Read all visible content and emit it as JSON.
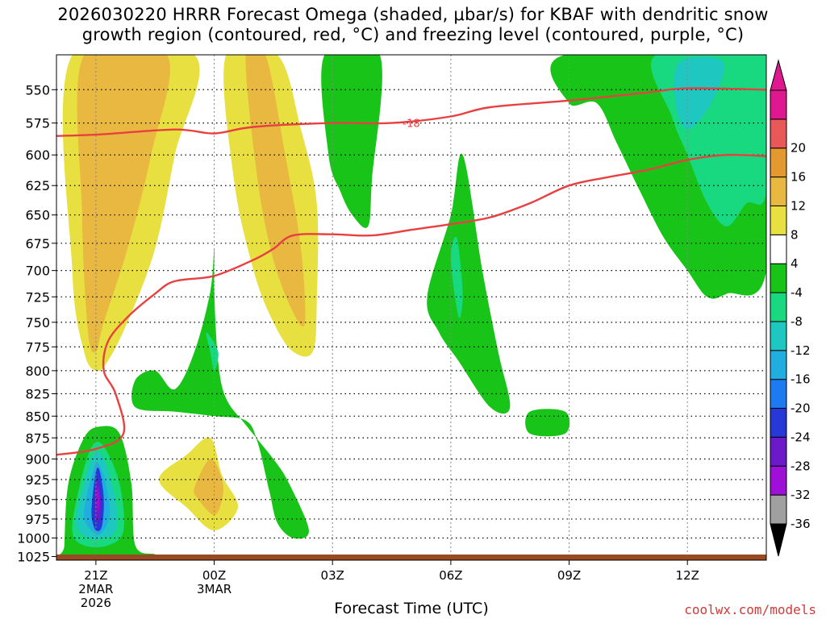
{
  "title": {
    "line1": "2026030220 HRRR Forecast Omega (shaded, μbar/s) for KBAF with dendritic snow",
    "line2": "growth region (contoured, red, °C) and freezing level (contoured, purple, °C)"
  },
  "x_axis": {
    "label": "Forecast Time (UTC)",
    "ticks": [
      {
        "label": "21Z",
        "sub1": "2MAR",
        "sub2": "2026",
        "hour": 0
      },
      {
        "label": "00Z",
        "sub1": "3MAR",
        "sub2": "",
        "hour": 3
      },
      {
        "label": "03Z",
        "sub1": "",
        "sub2": "",
        "hour": 6
      },
      {
        "label": "06Z",
        "sub1": "",
        "sub2": "",
        "hour": 9
      },
      {
        "label": "09Z",
        "sub1": "",
        "sub2": "",
        "hour": 12
      },
      {
        "label": "12Z",
        "sub1": "",
        "sub2": "",
        "hour": 15
      }
    ]
  },
  "credit": "coolwx.com/models",
  "chart_data": {
    "type": "contour",
    "x_units": "forecast hour from 2026-03-02 21Z",
    "xlim": [
      -1,
      17
    ],
    "ylim": [
      1030,
      525
    ],
    "y_log_scale": true,
    "y_ticks": [
      550,
      575,
      600,
      625,
      650,
      675,
      700,
      725,
      750,
      775,
      800,
      825,
      850,
      875,
      900,
      925,
      950,
      975,
      1000,
      1025
    ],
    "grid": true,
    "colorbar": {
      "levels": [
        -36,
        -32,
        -28,
        -24,
        -20,
        -16,
        -12,
        -8,
        -4,
        4,
        8,
        12,
        16,
        20
      ],
      "colors": [
        "#a0a0a0",
        "#9e10d8",
        "#6a1ac8",
        "#2638d6",
        "#1e7af0",
        "#20aee0",
        "#1ec8c0",
        "#18d880",
        "#18c418",
        "#ffffff",
        "#e8e040",
        "#e8b840",
        "#e49830",
        "#e85858",
        "#e01890"
      ],
      "over_color": "#e01890",
      "under_color": "#000000"
    },
    "omega_regions": [
      {
        "level": 4,
        "color": "#e8e040",
        "points": [
          [
            -0.6,
            525
          ],
          [
            2.5,
            525
          ],
          [
            2.0,
            600
          ],
          [
            1.5,
            680
          ],
          [
            0.8,
            750
          ],
          [
            0.3,
            790
          ],
          [
            0.0,
            800
          ],
          [
            -0.3,
            780
          ],
          [
            -0.6,
            700
          ]
        ]
      },
      {
        "level": 8,
        "color": "#e8b840",
        "points": [
          [
            -0.3,
            525
          ],
          [
            1.8,
            525
          ],
          [
            1.4,
            600
          ],
          [
            0.8,
            680
          ],
          [
            0.2,
            750
          ],
          [
            0.0,
            780
          ],
          [
            -0.2,
            760
          ],
          [
            -0.35,
            650
          ]
        ]
      },
      {
        "level": 4,
        "color": "#e8e040",
        "points": [
          [
            3.3,
            525
          ],
          [
            4.6,
            525
          ],
          [
            5.2,
            580
          ],
          [
            5.6,
            640
          ],
          [
            5.6,
            730
          ],
          [
            5.5,
            780
          ],
          [
            5.0,
            780
          ],
          [
            4.5,
            750
          ],
          [
            4.0,
            700
          ],
          [
            3.5,
            620
          ]
        ]
      },
      {
        "level": 8,
        "color": "#e8b840",
        "points": [
          [
            3.8,
            525
          ],
          [
            4.3,
            525
          ],
          [
            4.8,
            600
          ],
          [
            5.2,
            680
          ],
          [
            5.3,
            750
          ],
          [
            5.0,
            740
          ],
          [
            4.5,
            690
          ],
          [
            4.1,
            620
          ]
        ]
      },
      {
        "level": -4,
        "color": "#18c418",
        "points": [
          [
            5.8,
            525
          ],
          [
            7.2,
            525
          ],
          [
            7.0,
            620
          ],
          [
            6.9,
            660
          ],
          [
            6.5,
            650
          ],
          [
            6.2,
            630
          ],
          [
            5.9,
            600
          ]
        ]
      },
      {
        "level": -4,
        "color": "#18c418",
        "points": [
          [
            2.0,
            820
          ],
          [
            2.5,
            780
          ],
          [
            2.9,
            720
          ],
          [
            3.0,
            680
          ],
          [
            3.0,
            720
          ],
          [
            3.1,
            790
          ],
          [
            3.3,
            830
          ],
          [
            3.8,
            860
          ],
          [
            4.5,
            900
          ],
          [
            4.9,
            930
          ],
          [
            5.4,
            990
          ],
          [
            5.0,
            1000
          ],
          [
            4.6,
            980
          ],
          [
            4.4,
            940
          ],
          [
            4.1,
            880
          ],
          [
            3.8,
            855
          ],
          [
            3.0,
            850
          ],
          [
            2.0,
            845
          ],
          [
            1.0,
            840
          ],
          [
            1.0,
            810
          ],
          [
            1.5,
            800
          ]
        ]
      },
      {
        "level": -8,
        "color": "#18d880",
        "points": [
          [
            2.8,
            760
          ],
          [
            3.1,
            780
          ],
          [
            3.0,
            800
          ],
          [
            2.9,
            780
          ]
        ]
      },
      {
        "level": -4,
        "color": "#18c418",
        "points": [
          [
            8.4,
            725
          ],
          [
            9.0,
            650
          ],
          [
            9.3,
            600
          ],
          [
            9.8,
            700
          ],
          [
            10.2,
            780
          ],
          [
            10.5,
            840
          ],
          [
            10.0,
            840
          ],
          [
            9.2,
            790
          ],
          [
            8.7,
            760
          ]
        ]
      },
      {
        "level": -8,
        "color": "#18d880",
        "points": [
          [
            9.0,
            690
          ],
          [
            9.15,
            670
          ],
          [
            9.3,
            720
          ],
          [
            9.2,
            745
          ]
        ]
      },
      {
        "level": -4,
        "color": "#18c418",
        "points": [
          [
            11.0,
            845
          ],
          [
            11.9,
            845
          ],
          [
            11.9,
            870
          ],
          [
            11.0,
            870
          ]
        ]
      },
      {
        "level": -4,
        "color": "#18c418",
        "points": [
          [
            11.9,
            525
          ],
          [
            17,
            525
          ],
          [
            17,
            700
          ],
          [
            16,
            722
          ],
          [
            15.5,
            725
          ],
          [
            15.0,
            700
          ],
          [
            14.4,
            670
          ],
          [
            13.8,
            630
          ],
          [
            13.2,
            590
          ],
          [
            12.7,
            560
          ],
          [
            12.0,
            560
          ]
        ]
      },
      {
        "level": -8,
        "color": "#18d880",
        "points": [
          [
            14.2,
            525
          ],
          [
            17,
            525
          ],
          [
            17,
            630
          ],
          [
            16.5,
            640
          ],
          [
            16.0,
            660
          ],
          [
            15.5,
            640
          ],
          [
            15.0,
            600
          ],
          [
            14.6,
            570
          ]
        ]
      },
      {
        "level": -12,
        "color": "#1ec8c0",
        "points": [
          [
            14.8,
            530
          ],
          [
            15.9,
            530
          ],
          [
            15.6,
            560
          ],
          [
            15.0,
            580
          ],
          [
            14.7,
            560
          ]
        ]
      },
      {
        "level": -4,
        "color": "#18c418",
        "points": [
          [
            -0.8,
            1010
          ],
          [
            -0.7,
            930
          ],
          [
            -0.3,
            875
          ],
          [
            0.1,
            862
          ],
          [
            0.6,
            870
          ],
          [
            0.9,
            930
          ],
          [
            1.0,
            1010
          ],
          [
            1.5,
            1022
          ],
          [
            1.5,
            1027
          ],
          [
            -0.8,
            1027
          ]
        ]
      },
      {
        "level": -8,
        "color": "#18d880",
        "points": [
          [
            -0.6,
            990
          ],
          [
            -0.4,
            930
          ],
          [
            -0.1,
            885
          ],
          [
            0.2,
            885
          ],
          [
            0.6,
            930
          ],
          [
            0.7,
            990
          ],
          [
            0.3,
            1010
          ],
          [
            -0.3,
            1010
          ]
        ]
      },
      {
        "level": -12,
        "color": "#1ec8c0",
        "points": [
          [
            -0.5,
            980
          ],
          [
            -0.3,
            930
          ],
          [
            -0.05,
            895
          ],
          [
            0.2,
            900
          ],
          [
            0.5,
            950
          ],
          [
            0.5,
            990
          ],
          [
            0.2,
            1000
          ],
          [
            -0.2,
            1000
          ]
        ]
      },
      {
        "level": -16,
        "color": "#20aee0",
        "points": [
          [
            -0.3,
            965
          ],
          [
            -0.1,
            920
          ],
          [
            0.05,
            905
          ],
          [
            0.25,
            930
          ],
          [
            0.35,
            970
          ],
          [
            0.1,
            995
          ],
          [
            -0.2,
            985
          ]
        ]
      },
      {
        "level": -20,
        "color": "#2638d6",
        "points": [
          [
            -0.1,
            955
          ],
          [
            0.0,
            915
          ],
          [
            0.1,
            915
          ],
          [
            0.2,
            950
          ],
          [
            0.15,
            985
          ],
          [
            0.0,
            990
          ],
          [
            -0.1,
            975
          ]
        ]
      },
      {
        "level": -24,
        "color": "#6a1ac8",
        "points": [
          [
            -0.02,
            940
          ],
          [
            0.05,
            925
          ],
          [
            0.12,
            950
          ],
          [
            0.1,
            975
          ],
          [
            0.0,
            975
          ]
        ]
      },
      {
        "level": -28,
        "color": "#9e10d8",
        "points": [
          [
            0.02,
            945
          ],
          [
            0.06,
            935
          ],
          [
            0.09,
            955
          ],
          [
            0.05,
            965
          ]
        ]
      },
      {
        "level": 4,
        "color": "#e8e040",
        "points": [
          [
            1.6,
            925
          ],
          [
            2.3,
            895
          ],
          [
            2.9,
            875
          ],
          [
            3.2,
            920
          ],
          [
            3.6,
            960
          ],
          [
            3.0,
            990
          ],
          [
            2.3,
            960
          ]
        ]
      },
      {
        "level": 8,
        "color": "#e8b840",
        "points": [
          [
            2.5,
            935
          ],
          [
            2.9,
            900
          ],
          [
            3.2,
            925
          ],
          [
            3.2,
            950
          ],
          [
            3.0,
            970
          ],
          [
            2.6,
            950
          ]
        ]
      }
    ],
    "dgz_contours": [
      {
        "label": "-18",
        "label_at": [
          8.0,
          575
        ],
        "points": [
          [
            -1,
            585
          ],
          [
            0,
            584
          ],
          [
            2,
            580
          ],
          [
            3,
            583
          ],
          [
            4,
            578
          ],
          [
            6,
            575
          ],
          [
            7.5,
            575
          ],
          [
            9,
            570
          ],
          [
            10,
            563
          ],
          [
            12,
            558
          ],
          [
            14,
            552
          ],
          [
            15,
            549
          ],
          [
            17,
            550
          ]
        ]
      },
      {
        "label": "",
        "points": [
          [
            -1,
            895
          ],
          [
            0,
            888
          ],
          [
            0.7,
            870
          ],
          [
            0.5,
            825
          ],
          [
            0.2,
            800
          ],
          [
            0.3,
            770
          ],
          [
            0.8,
            745
          ],
          [
            1.5,
            722
          ],
          [
            2.0,
            710
          ],
          [
            3.0,
            705
          ],
          [
            4.0,
            690
          ],
          [
            4.5,
            680
          ],
          [
            5.0,
            668
          ],
          [
            6,
            667
          ],
          [
            7,
            668
          ],
          [
            8,
            663
          ],
          [
            9,
            658
          ],
          [
            10,
            652
          ],
          [
            11,
            640
          ],
          [
            12,
            625
          ],
          [
            13,
            618
          ],
          [
            14,
            612
          ],
          [
            15,
            604
          ],
          [
            16,
            600
          ],
          [
            17,
            601
          ]
        ]
      }
    ]
  }
}
